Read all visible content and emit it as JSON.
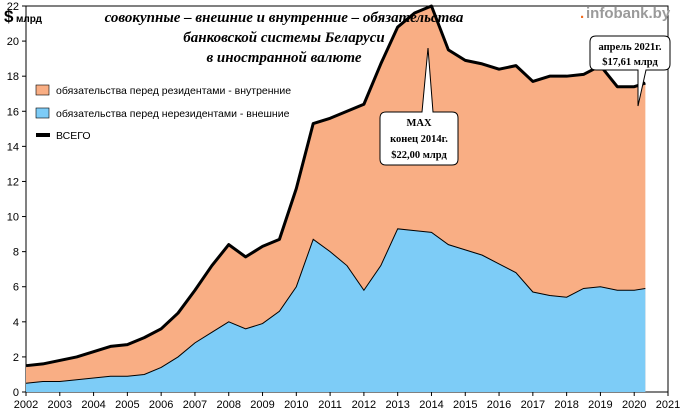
{
  "logo": {
    "dot": ".",
    "text": "infobank.by"
  },
  "unit": {
    "symbol": "$",
    "text": "млрд"
  },
  "colors": {
    "internal": "#f9ae84",
    "external": "#7dccf7",
    "total": "#000000",
    "border": "#000000"
  },
  "chart_data": {
    "type": "area",
    "title": [
      "совокупные – внешние и внутренние – обязательства",
      "банковской системы Беларуси",
      "в иностранной валюте"
    ],
    "xlabel": "",
    "ylabel": "",
    "xlim": [
      2002,
      2021
    ],
    "ylim": [
      0,
      22
    ],
    "xticks": [
      "2002",
      "2003",
      "2004",
      "2005",
      "2006",
      "2007",
      "2008",
      "2009",
      "2010",
      "2011",
      "2012",
      "2013",
      "2014",
      "2015",
      "2016",
      "2017",
      "2018",
      "2019",
      "2020",
      "2021"
    ],
    "yticks": [
      "0",
      "2",
      "4",
      "6",
      "8",
      "10",
      "12",
      "14",
      "16",
      "18",
      "20",
      "22"
    ],
    "x": [
      2002,
      2002.5,
      2003,
      2003.5,
      2004,
      2004.5,
      2005,
      2005.5,
      2006,
      2006.5,
      2007,
      2007.5,
      2008,
      2008.5,
      2009,
      2009.5,
      2010,
      2010.5,
      2011,
      2011.5,
      2012,
      2012.5,
      2013,
      2013.5,
      2014,
      2014.5,
      2015,
      2015.5,
      2016,
      2016.5,
      2017,
      2017.5,
      2018,
      2018.5,
      2019,
      2019.5,
      2020,
      2020.33
    ],
    "series": [
      {
        "name": "обязательства перед нерезидентами - внешние",
        "values": [
          0.5,
          0.6,
          0.6,
          0.7,
          0.8,
          0.9,
          0.9,
          1.0,
          1.4,
          2.0,
          2.8,
          3.4,
          4.0,
          3.6,
          3.9,
          4.6,
          6.0,
          8.7,
          8.0,
          7.2,
          5.8,
          7.2,
          9.3,
          9.2,
          9.1,
          8.4,
          8.1,
          7.8,
          7.3,
          6.8,
          5.7,
          5.5,
          5.4,
          5.9,
          6.0,
          5.8,
          5.8,
          5.9
        ]
      },
      {
        "name": "обязательства перед резидентами - внутренние",
        "values": [
          1.0,
          1.0,
          1.2,
          1.3,
          1.5,
          1.7,
          1.8,
          2.1,
          2.2,
          2.5,
          3.0,
          3.8,
          4.4,
          4.1,
          4.4,
          4.1,
          5.6,
          6.6,
          7.6,
          8.8,
          10.6,
          11.5,
          11.5,
          12.4,
          12.9,
          11.1,
          10.8,
          10.9,
          11.1,
          11.8,
          12.0,
          12.5,
          12.6,
          12.2,
          12.6,
          11.6,
          11.6,
          11.71
        ]
      },
      {
        "name": "ВСЕГО",
        "values": [
          1.5,
          1.6,
          1.8,
          2.0,
          2.3,
          2.6,
          2.7,
          3.1,
          3.6,
          4.5,
          5.8,
          7.2,
          8.4,
          7.7,
          8.3,
          8.7,
          11.6,
          15.3,
          15.6,
          16.0,
          16.4,
          18.7,
          20.8,
          21.6,
          22.0,
          19.5,
          18.9,
          18.7,
          18.4,
          18.6,
          17.7,
          18.0,
          18.0,
          18.1,
          18.6,
          17.4,
          17.4,
          17.61
        ]
      }
    ],
    "legend": {
      "position": "top-left",
      "internal": "обязательства  перед резидентами - внутренние",
      "external": "обязательства  перед нерезидентами - внешние",
      "total": "ВСЕГО"
    },
    "annotations": {
      "max": [
        "MAX",
        "конец 2014г.",
        "$22,00 млрд"
      ],
      "last": [
        "апрель  2021г.",
        "$17,61 млрд"
      ]
    },
    "grid": false
  }
}
